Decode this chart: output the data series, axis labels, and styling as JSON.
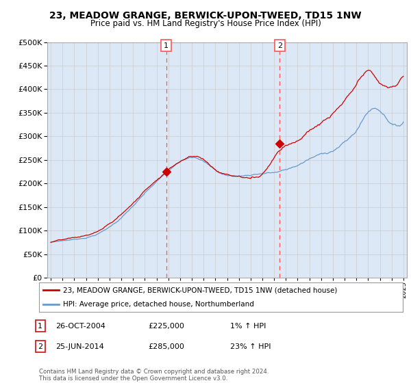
{
  "title": "23, MEADOW GRANGE, BERWICK-UPON-TWEED, TD15 1NW",
  "subtitle": "Price paid vs. HM Land Registry's House Price Index (HPI)",
  "legend_line1": "23, MEADOW GRANGE, BERWICK-UPON-TWEED, TD15 1NW (detached house)",
  "legend_line2": "HPI: Average price, detached house, Northumberland",
  "annotation1_label": "1",
  "annotation1_date": "26-OCT-2004",
  "annotation1_price": "£225,000",
  "annotation1_hpi": "1% ↑ HPI",
  "annotation2_label": "2",
  "annotation2_date": "25-JUN-2014",
  "annotation2_price": "£285,000",
  "annotation2_hpi": "23% ↑ HPI",
  "footer": "Contains HM Land Registry data © Crown copyright and database right 2024.\nThis data is licensed under the Open Government Licence v3.0.",
  "ylim": [
    0,
    500000
  ],
  "yticks": [
    0,
    50000,
    100000,
    150000,
    200000,
    250000,
    300000,
    350000,
    400000,
    450000,
    500000
  ],
  "sale1_year": 2004.82,
  "sale1_price": 225000,
  "sale2_year": 2014.48,
  "sale2_price": 285000,
  "red_line_color": "#cc0000",
  "blue_line_color": "#6699cc",
  "shade_color": "#dce8f5",
  "vline_color": "#ff5555",
  "grid_color": "#cccccc",
  "bg_color": "#dce8f5"
}
